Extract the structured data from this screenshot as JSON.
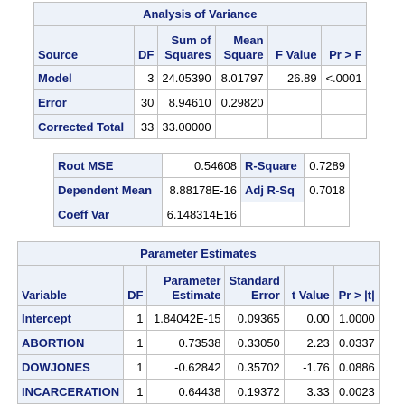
{
  "anova": {
    "title": "Analysis of Variance",
    "headers": {
      "source": "Source",
      "df": "DF",
      "ss_line1": "Sum of",
      "ss_line2": "Squares",
      "ms_line1": "Mean",
      "ms_line2": "Square",
      "f": "F Value",
      "p": "Pr > F"
    },
    "rows": [
      {
        "source": "Model",
        "df": "3",
        "ss": "24.05390",
        "ms": "8.01797",
        "f": "26.89",
        "p": "<.0001"
      },
      {
        "source": "Error",
        "df": "30",
        "ss": "8.94610",
        "ms": "0.29820",
        "f": "",
        "p": ""
      },
      {
        "source": "Corrected Total",
        "df": "33",
        "ss": "33.00000",
        "ms": "",
        "f": "",
        "p": ""
      }
    ]
  },
  "fit": {
    "rows": [
      {
        "label1": "Root MSE",
        "value1": "0.54608",
        "label2": "R-Square",
        "value2": "0.7289"
      },
      {
        "label1": "Dependent Mean",
        "value1": "8.88178E-16",
        "label2": "Adj R-Sq",
        "value2": "0.7018"
      },
      {
        "label1": "Coeff Var",
        "value1": "6.148314E16",
        "label2": "",
        "value2": ""
      }
    ]
  },
  "params": {
    "title": "Parameter Estimates",
    "headers": {
      "variable": "Variable",
      "df": "DF",
      "est_line1": "Parameter",
      "est_line2": "Estimate",
      "se_line1": "Standard",
      "se_line2": "Error",
      "t": "t Value",
      "p": "Pr > |t|"
    },
    "rows": [
      {
        "variable": "Intercept",
        "df": "1",
        "est": "1.84042E-15",
        "se": "0.09365",
        "t": "0.00",
        "p": "1.0000"
      },
      {
        "variable": "ABORTION",
        "df": "1",
        "est": "0.73538",
        "se": "0.33050",
        "t": "2.23",
        "p": "0.0337"
      },
      {
        "variable": "DOWJONES",
        "df": "1",
        "est": "-0.62842",
        "se": "0.35702",
        "t": "-1.76",
        "p": "0.0886"
      },
      {
        "variable": "INCARCERATION",
        "df": "1",
        "est": "0.64438",
        "se": "0.19372",
        "t": "3.33",
        "p": "0.0023"
      }
    ]
  }
}
